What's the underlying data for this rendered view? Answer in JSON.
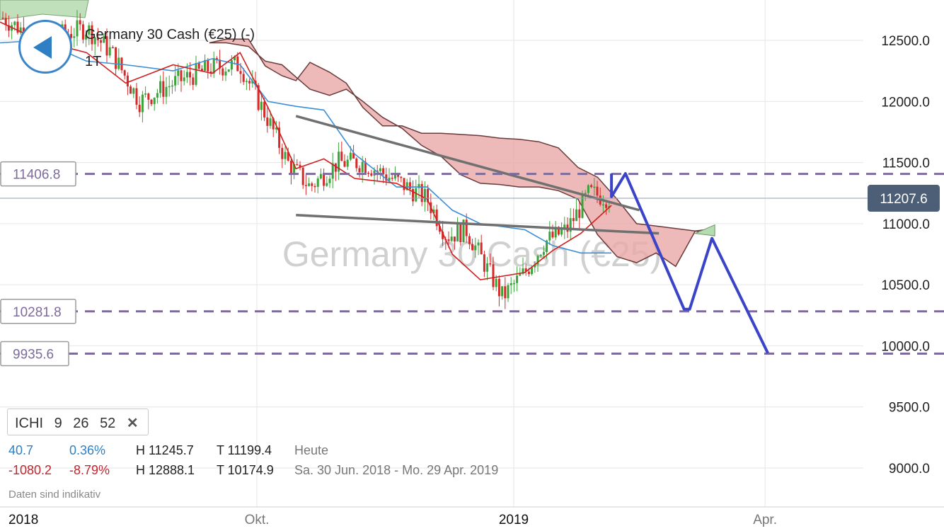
{
  "chart_data": {
    "type": "candlestick",
    "instrument": "Germany 30 Cash (€25) (-)",
    "watermark": "Germany 30 Cash (€25)",
    "timeframe": "1T",
    "y_axis": {
      "min": 8600,
      "max": 12800,
      "ticks": [
        12500,
        12000,
        11500,
        11000,
        10500,
        10000,
        9500,
        9000
      ],
      "tick_labels": [
        "12500.0",
        "12000.0",
        "11500.0",
        "11000.0",
        "10500.0",
        "10000.0",
        "9500.0",
        "9000.0"
      ]
    },
    "x_axis": {
      "labels": [
        {
          "date": "2018-07-01",
          "label": "2018"
        },
        {
          "date": "2018-10-01",
          "label": "Okt."
        },
        {
          "date": "2019-01-01",
          "label": "2019"
        },
        {
          "date": "2019-04-01",
          "label": "Apr."
        }
      ]
    },
    "current_price": {
      "value": 11207.6,
      "label": "11207.6"
    },
    "horizontal_levels": [
      {
        "value": 11406.8,
        "label": "11406.8"
      },
      {
        "value": 10281.8,
        "label": "10281.8"
      },
      {
        "value": 9935.6,
        "label": "9935.6"
      }
    ],
    "trendlines": [
      {
        "from": [
          "2018-10-15",
          11880
        ],
        "to": [
          "2019-02-15",
          11110
        ]
      },
      {
        "from": [
          "2018-10-15",
          11070
        ],
        "to": [
          "2019-02-22",
          10920
        ]
      }
    ],
    "forecast_path": [
      [
        "2019-02-05",
        11410
      ],
      [
        "2019-02-05",
        11220
      ],
      [
        "2019-02-10",
        11410
      ],
      [
        "2019-03-03",
        10300
      ],
      [
        "2019-03-05",
        10300
      ],
      [
        "2019-03-13",
        10880
      ],
      [
        "2019-04-02",
        9940
      ]
    ],
    "kumo_upper": [
      [
        "2018-09-14",
        12480
      ],
      [
        "2018-09-20",
        12510
      ],
      [
        "2018-09-28",
        12510
      ],
      [
        "2018-10-04",
        12290
      ],
      [
        "2018-10-10",
        12210
      ],
      [
        "2018-10-15",
        12170
      ],
      [
        "2018-10-20",
        12320
      ],
      [
        "2018-10-27",
        12240
      ],
      [
        "2018-11-02",
        12150
      ],
      [
        "2018-11-08",
        11950
      ],
      [
        "2018-11-15",
        11800
      ],
      [
        "2018-11-22",
        11800
      ],
      [
        "2018-11-29",
        11740
      ],
      [
        "2018-12-06",
        11740
      ],
      [
        "2018-12-13",
        11730
      ],
      [
        "2018-12-20",
        11720
      ],
      [
        "2018-12-27",
        11700
      ],
      [
        "2019-01-03",
        11690
      ],
      [
        "2019-01-10",
        11670
      ],
      [
        "2019-01-17",
        11620
      ],
      [
        "2019-01-24",
        11460
      ],
      [
        "2019-01-31",
        11380
      ],
      [
        "2019-02-07",
        11200
      ],
      [
        "2019-02-14",
        11000
      ],
      [
        "2019-02-21",
        10980
      ],
      [
        "2019-02-28",
        10960
      ],
      [
        "2019-03-07",
        10940
      ],
      [
        "2019-03-14",
        10960
      ]
    ],
    "kumo_lower": [
      [
        "2018-09-14",
        12480
      ],
      [
        "2018-09-20",
        12480
      ],
      [
        "2018-09-28",
        12450
      ],
      [
        "2018-10-04",
        12330
      ],
      [
        "2018-10-10",
        12300
      ],
      [
        "2018-10-15",
        12200
      ],
      [
        "2018-10-20",
        12100
      ],
      [
        "2018-10-27",
        12050
      ],
      [
        "2018-11-02",
        12100
      ],
      [
        "2018-11-08",
        12000
      ],
      [
        "2018-11-15",
        11870
      ],
      [
        "2018-11-22",
        11780
      ],
      [
        "2018-11-29",
        11640
      ],
      [
        "2018-12-06",
        11550
      ],
      [
        "2018-12-13",
        11400
      ],
      [
        "2018-12-20",
        11330
      ],
      [
        "2018-12-27",
        11320
      ],
      [
        "2019-01-03",
        11300
      ],
      [
        "2019-01-10",
        11300
      ],
      [
        "2019-01-17",
        11270
      ],
      [
        "2019-01-24",
        11200
      ],
      [
        "2019-01-31",
        10910
      ],
      [
        "2019-02-07",
        10730
      ],
      [
        "2019-02-14",
        10680
      ],
      [
        "2019-02-21",
        10760
      ],
      [
        "2019-02-28",
        10650
      ],
      [
        "2019-03-07",
        10940
      ],
      [
        "2019-03-14",
        10900
      ]
    ],
    "kumo_green_tail": [
      [
        "2019-03-07",
        10920
      ],
      [
        "2019-03-14",
        10990
      ],
      [
        "2019-03-14",
        10900
      ],
      [
        "2019-03-07",
        10920
      ]
    ],
    "kijun": [
      [
        "2018-07-01",
        12480
      ],
      [
        "2018-07-15",
        12500
      ],
      [
        "2018-08-01",
        12330
      ],
      [
        "2018-08-15",
        12300
      ],
      [
        "2018-09-01",
        12250
      ],
      [
        "2018-09-15",
        12350
      ],
      [
        "2018-09-25",
        12300
      ],
      [
        "2018-10-05",
        12000
      ],
      [
        "2018-10-15",
        11960
      ],
      [
        "2018-10-25",
        11930
      ],
      [
        "2018-11-05",
        11570
      ],
      [
        "2018-11-20",
        11300
      ],
      [
        "2018-12-01",
        11300
      ],
      [
        "2018-12-10",
        11110
      ],
      [
        "2018-12-20",
        11000
      ],
      [
        "2019-01-05",
        10950
      ],
      [
        "2019-01-15",
        10820
      ],
      [
        "2019-01-25",
        10760
      ],
      [
        "2019-02-05",
        10760
      ]
    ],
    "tenkan": [
      [
        "2018-07-01",
        12650
      ],
      [
        "2018-07-15",
        12500
      ],
      [
        "2018-08-01",
        12400
      ],
      [
        "2018-08-15",
        12150
      ],
      [
        "2018-09-01",
        12300
      ],
      [
        "2018-09-15",
        12230
      ],
      [
        "2018-09-25",
        12400
      ],
      [
        "2018-10-05",
        11950
      ],
      [
        "2018-10-15",
        11450
      ],
      [
        "2018-10-25",
        11530
      ],
      [
        "2018-11-05",
        11370
      ],
      [
        "2018-11-20",
        11330
      ],
      [
        "2018-12-01",
        11200
      ],
      [
        "2018-12-10",
        10750
      ],
      [
        "2018-12-20",
        10540
      ],
      [
        "2019-01-05",
        10600
      ],
      [
        "2019-01-15",
        10780
      ],
      [
        "2019-01-25",
        10920
      ],
      [
        "2019-02-05",
        11150
      ]
    ],
    "close_path": [
      [
        "2018-07-01",
        12700
      ],
      [
        "2018-07-15",
        12500
      ],
      [
        "2018-08-01",
        12600
      ],
      [
        "2018-08-10",
        12400
      ],
      [
        "2018-08-20",
        12000
      ],
      [
        "2018-09-01",
        12150
      ],
      [
        "2018-09-15",
        12280
      ],
      [
        "2018-09-25",
        12300
      ],
      [
        "2018-10-05",
        11850
      ],
      [
        "2018-10-12",
        11500
      ],
      [
        "2018-10-20",
        11300
      ],
      [
        "2018-10-30",
        11500
      ],
      [
        "2018-11-08",
        11500
      ],
      [
        "2018-11-20",
        11350
      ],
      [
        "2018-12-01",
        11200
      ],
      [
        "2018-12-08",
        10900
      ],
      [
        "2018-12-15",
        10950
      ],
      [
        "2018-12-22",
        10650
      ],
      [
        "2018-12-28",
        10400
      ],
      [
        "2019-01-05",
        10600
      ],
      [
        "2019-01-12",
        10850
      ],
      [
        "2019-01-20",
        10950
      ],
      [
        "2019-01-28",
        11250
      ],
      [
        "2019-02-05",
        11208
      ]
    ]
  },
  "indicator": {
    "name": "ICHI",
    "params": [
      "9",
      "26",
      "52"
    ],
    "close_symbol": "✕"
  },
  "stats": {
    "today": {
      "change": "40.7",
      "change_pct": "0.36%",
      "high": "H 11245.7",
      "low": "T 11199.4",
      "period": "Heute"
    },
    "range": {
      "change": "-1080.2",
      "change_pct": "-8.79%",
      "high": "H 12888.1",
      "low": "T 10174.9",
      "period": "Sa. 30 Jun. 2018 - Mo. 29 Apr. 2019"
    }
  },
  "disclaimer": "Daten sind indikativ",
  "colors": {
    "up": "#3aa33a",
    "down": "#d42a2a",
    "kijun": "#3b8fd6",
    "tenkan": "#d11f1f",
    "kumo": "#e9a8a8",
    "kumo_edge": "#6b3a3a",
    "kumo_green": "#b5dbb0",
    "level": "#7d6b9c",
    "trend": "#707070",
    "forecast": "#3b44c8",
    "price_tag": "#4d5f77",
    "grid": "#e6e6e6"
  },
  "icons": {
    "back": "back-arrow-icon"
  }
}
